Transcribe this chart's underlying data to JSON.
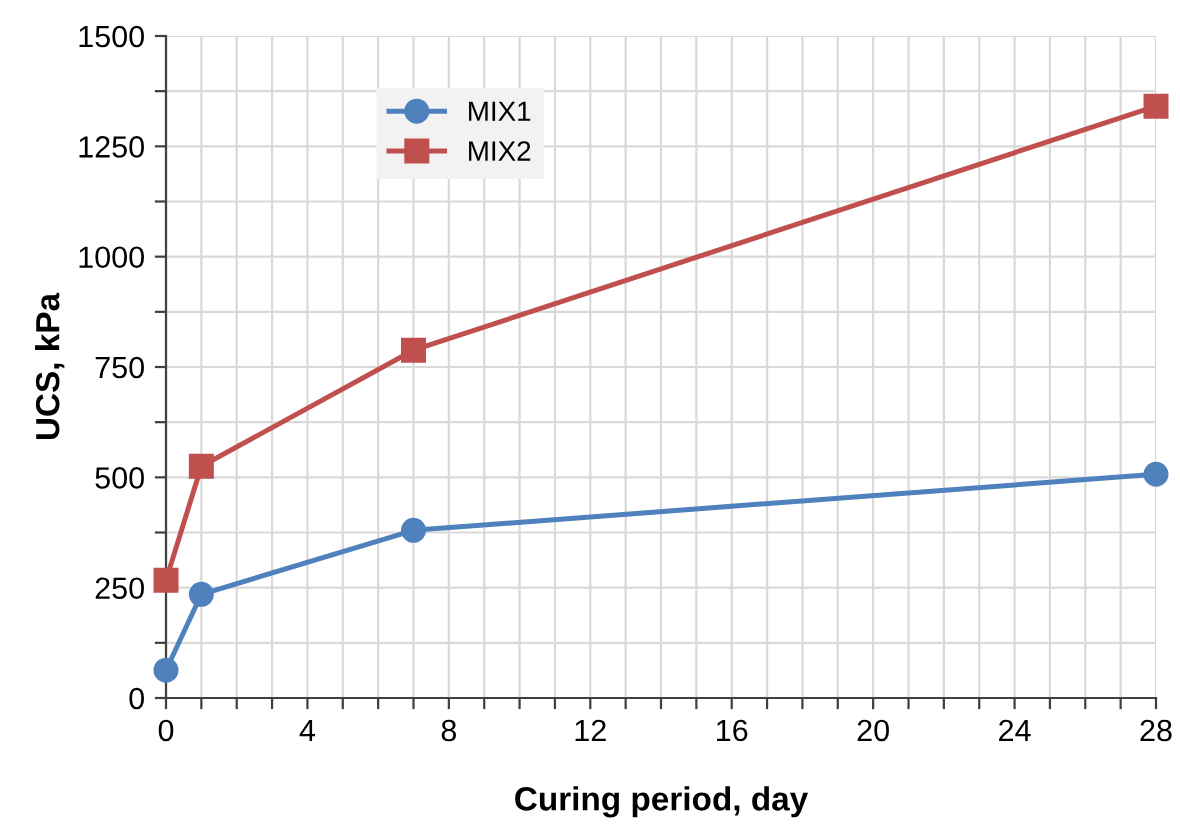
{
  "chart_data": {
    "type": "line",
    "xlabel": "Curing period, day",
    "ylabel": "UCS, kPa",
    "x": [
      0,
      1,
      7,
      28
    ],
    "series": [
      {
        "name": "MIX1",
        "color": "#4f81bd",
        "marker": "circle",
        "values": [
          63,
          235,
          380,
          507
        ]
      },
      {
        "name": "MIX2",
        "color": "#c0504d",
        "marker": "square",
        "values": [
          267,
          525,
          788,
          1341
        ]
      }
    ],
    "xlim": [
      0,
      28
    ],
    "ylim": [
      0,
      1500
    ],
    "xticks": [
      0,
      {
        "value": 1,
        "label": null
      },
      {
        "value": 2,
        "label": null
      },
      {
        "value": 3,
        "label": null
      },
      4,
      {
        "value": 5,
        "label": null
      },
      {
        "value": 6,
        "label": null
      },
      {
        "value": 7,
        "label": null
      },
      8,
      {
        "value": 9,
        "label": null
      },
      {
        "value": 10,
        "label": null
      },
      {
        "value": 11,
        "label": null
      },
      12,
      {
        "value": 13,
        "label": null
      },
      {
        "value": 14,
        "label": null
      },
      {
        "value": 15,
        "label": null
      },
      16,
      {
        "value": 17,
        "label": null
      },
      {
        "value": 18,
        "label": null
      },
      {
        "value": 19,
        "label": null
      },
      20,
      {
        "value": 21,
        "label": null
      },
      {
        "value": 22,
        "label": null
      },
      {
        "value": 23,
        "label": null
      },
      24,
      {
        "value": 25,
        "label": null
      },
      {
        "value": 26,
        "label": null
      },
      {
        "value": 27,
        "label": null
      },
      28
    ],
    "yticks": [
      0,
      {
        "value": 125,
        "label": null
      },
      250,
      {
        "value": 375,
        "label": null
      },
      500,
      {
        "value": 625,
        "label": null
      },
      750,
      {
        "value": 875,
        "label": null
      },
      1000,
      {
        "value": 1125,
        "label": null
      },
      1250,
      {
        "value": 1375,
        "label": null
      },
      1500
    ],
    "grid": true,
    "legend": "top left",
    "line_style": "solid"
  }
}
